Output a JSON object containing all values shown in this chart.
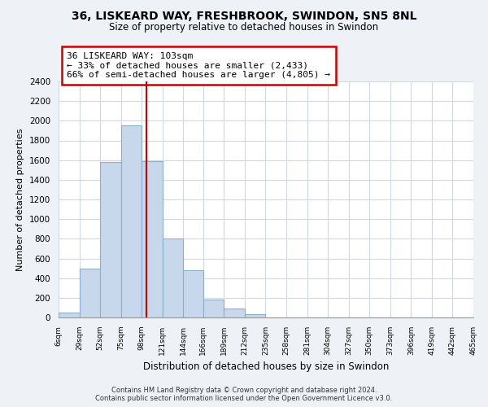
{
  "title": "36, LISKEARD WAY, FRESHBROOK, SWINDON, SN5 8NL",
  "subtitle": "Size of property relative to detached houses in Swindon",
  "xlabel": "Distribution of detached houses by size in Swindon",
  "ylabel": "Number of detached properties",
  "bar_color": "#c8d8ec",
  "bar_edge_color": "#8ab0cc",
  "vline_x": 103,
  "vline_color": "#cc0000",
  "annotation_title": "36 LISKEARD WAY: 103sqm",
  "annotation_line1": "← 33% of detached houses are smaller (2,433)",
  "annotation_line2": "66% of semi-detached houses are larger (4,805) →",
  "annotation_box_color": "white",
  "annotation_box_edge": "#cc0000",
  "bin_edges": [
    6,
    29,
    52,
    75,
    98,
    121,
    144,
    166,
    189,
    212,
    235,
    258,
    281,
    304,
    327,
    350,
    373,
    396,
    419,
    442,
    465
  ],
  "bin_heights": [
    50,
    500,
    1580,
    1950,
    1590,
    800,
    480,
    185,
    90,
    30,
    0,
    0,
    0,
    0,
    0,
    0,
    0,
    0,
    0,
    0
  ],
  "ylim": [
    0,
    2400
  ],
  "yticks": [
    0,
    200,
    400,
    600,
    800,
    1000,
    1200,
    1400,
    1600,
    1800,
    2000,
    2200,
    2400
  ],
  "tick_labels": [
    "6sqm",
    "29sqm",
    "52sqm",
    "75sqm",
    "98sqm",
    "121sqm",
    "144sqm",
    "166sqm",
    "189sqm",
    "212sqm",
    "235sqm",
    "258sqm",
    "281sqm",
    "304sqm",
    "327sqm",
    "350sqm",
    "373sqm",
    "396sqm",
    "419sqm",
    "442sqm",
    "465sqm"
  ],
  "footer_line1": "Contains HM Land Registry data © Crown copyright and database right 2024.",
  "footer_line2": "Contains public sector information licensed under the Open Government Licence v3.0.",
  "background_color": "#eef2f6",
  "plot_bg_color": "#ffffff",
  "grid_color": "#d0d8e4"
}
